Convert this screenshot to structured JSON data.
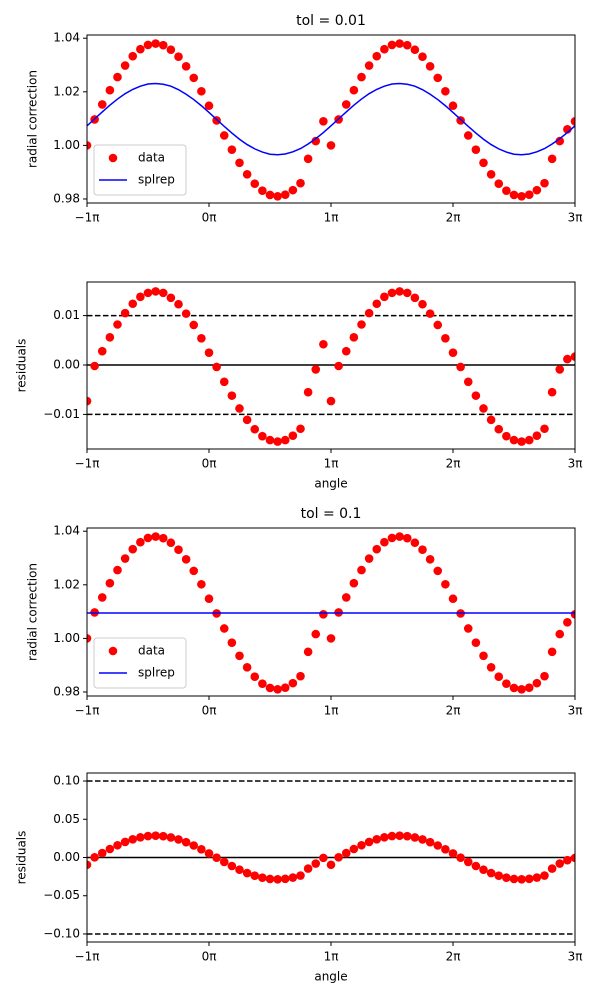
{
  "chart_data": [
    {
      "type": "line",
      "title": "tol = 0.01",
      "ylabel": "radial correction",
      "x": [
        -1,
        -0.9375,
        -0.875,
        -0.8125,
        -0.75,
        -0.6875,
        -0.625,
        -0.5625,
        -0.5,
        -0.4375,
        -0.375,
        -0.3125,
        -0.25,
        -0.1875,
        -0.125,
        -0.0625,
        0,
        0.0625,
        0.125,
        0.1875,
        0.25,
        0.3125,
        0.375,
        0.4375,
        0.5,
        0.5625,
        0.625,
        0.6875,
        0.75,
        0.8125,
        0.875,
        0.9375,
        1,
        1.0625,
        1.125,
        1.1875,
        1.25,
        1.3125,
        1.375,
        1.4375,
        1.5,
        1.5625,
        1.625,
        1.6875,
        1.75,
        1.8125,
        1.875,
        1.9375,
        2,
        2.0625,
        2.125,
        2.1875,
        2.25,
        2.3125,
        2.375,
        2.4375,
        2.5,
        2.5625,
        2.625,
        2.6875,
        2.75,
        2.8125,
        2.875,
        2.9375,
        3
      ],
      "series": [
        {
          "name": "data",
          "color": "red",
          "style": "marker",
          "values": [
            1.0,
            1.0097,
            1.0153,
            1.0206,
            1.0255,
            1.0298,
            1.0333,
            1.0359,
            1.0375,
            1.038,
            1.0374,
            1.0357,
            1.0331,
            1.0295,
            1.0252,
            1.0202,
            1.0148,
            1.0093,
            1.0037,
            0.9984,
            0.9935,
            0.9892,
            0.9857,
            0.9831,
            0.9815,
            0.981,
            0.9816,
            0.9833,
            0.9859,
            0.995,
            1.0016,
            1.009,
            1.0,
            1.0097,
            1.0153,
            1.0206,
            1.0255,
            1.0298,
            1.0333,
            1.0359,
            1.0375,
            1.038,
            1.0374,
            1.0357,
            1.0331,
            1.0295,
            1.0252,
            1.0202,
            1.0148,
            1.0093,
            1.0037,
            0.9984,
            0.9935,
            0.9892,
            0.9857,
            0.9831,
            0.9815,
            0.981,
            0.9816,
            0.9833,
            0.9859,
            0.995,
            1.0016,
            1.006,
            1.009
          ]
        },
        {
          "name": "splrep",
          "color": "blue",
          "style": "line",
          "values": [
            1.0073,
            1.0099,
            1.0125,
            1.015,
            1.0173,
            1.0193,
            1.0209,
            1.0221,
            1.0229,
            1.0231,
            1.0228,
            1.0221,
            1.0208,
            1.0191,
            1.0171,
            1.0148,
            1.0123,
            1.0097,
            1.0071,
            1.0046,
            1.0023,
            1.0003,
            0.9987,
            0.9975,
            0.9967,
            0.9965,
            0.9968,
            0.9976,
            0.9988,
            1.0005,
            1.0025,
            1.0048,
            1.0073,
            1.0099,
            1.0125,
            1.015,
            1.0173,
            1.0193,
            1.0209,
            1.0221,
            1.0229,
            1.0231,
            1.0228,
            1.0221,
            1.0208,
            1.0191,
            1.0171,
            1.0148,
            1.0123,
            1.0097,
            1.0071,
            1.0046,
            1.0023,
            1.0003,
            0.9987,
            0.9975,
            0.9967,
            0.9965,
            0.9968,
            0.9976,
            0.9988,
            1.0005,
            1.0025,
            1.0048,
            1.0073
          ]
        }
      ],
      "xlim": [
        -1,
        3
      ],
      "xticks": [
        {
          "value": -1,
          "label": "−1π"
        },
        {
          "value": 0,
          "label": "0π"
        },
        {
          "value": 1,
          "label": "1π"
        },
        {
          "value": 2,
          "label": "2π"
        },
        {
          "value": 3,
          "label": "3π"
        }
      ],
      "ylim": [
        0.9785,
        1.0412
      ],
      "yticks": [
        0.98,
        {
          "value": 1,
          "label": "1.00"
        },
        1.02,
        1.04
      ],
      "legend": "lower left"
    },
    {
      "type": "scatter",
      "ylabel": "residuals",
      "xlabel": "angle",
      "x": [
        -1,
        -0.9375,
        -0.875,
        -0.8125,
        -0.75,
        -0.6875,
        -0.625,
        -0.5625,
        -0.5,
        -0.4375,
        -0.375,
        -0.3125,
        -0.25,
        -0.1875,
        -0.125,
        -0.0625,
        0,
        0.0625,
        0.125,
        0.1875,
        0.25,
        0.3125,
        0.375,
        0.4375,
        0.5,
        0.5625,
        0.625,
        0.6875,
        0.75,
        0.8125,
        0.875,
        0.9375,
        1,
        1.0625,
        1.125,
        1.1875,
        1.25,
        1.3125,
        1.375,
        1.4375,
        1.5,
        1.5625,
        1.625,
        1.6875,
        1.75,
        1.8125,
        1.875,
        1.9375,
        2,
        2.0625,
        2.125,
        2.1875,
        2.25,
        2.3125,
        2.375,
        2.4375,
        2.5,
        2.5625,
        2.625,
        2.6875,
        2.75,
        2.8125,
        2.875,
        2.9375,
        3
      ],
      "series": [
        {
          "color": "red",
          "style": "marker",
          "values": [
            -0.0073,
            -0.0002,
            0.0028,
            0.0056,
            0.0082,
            0.0105,
            0.0124,
            0.0138,
            0.0146,
            0.0149,
            0.0146,
            0.0136,
            0.0123,
            0.0104,
            0.0081,
            0.0054,
            0.0025,
            -0.0004,
            -0.0034,
            -0.0062,
            -0.0088,
            -0.0111,
            -0.013,
            -0.0144,
            -0.0152,
            -0.0155,
            -0.0152,
            -0.0143,
            -0.0129,
            -0.0055,
            -0.0009,
            0.0042,
            -0.0073,
            -0.0002,
            0.0028,
            0.0056,
            0.0082,
            0.0105,
            0.0124,
            0.0138,
            0.0146,
            0.0149,
            0.0146,
            0.0136,
            0.0123,
            0.0104,
            0.0081,
            0.0054,
            0.0025,
            -0.0004,
            -0.0034,
            -0.0062,
            -0.0088,
            -0.0111,
            -0.013,
            -0.0144,
            -0.0152,
            -0.0155,
            -0.0152,
            -0.0143,
            -0.0129,
            -0.0055,
            -0.0009,
            0.0012,
            0.0017
          ]
        }
      ],
      "hlines": [
        {
          "value": 0.01,
          "style": "dashed"
        },
        {
          "value": 0,
          "style": "solid"
        },
        {
          "value": -0.01,
          "style": "dashed"
        }
      ],
      "xlim": [
        -1,
        3
      ],
      "xticks": [
        {
          "value": -1,
          "label": "−1π"
        },
        {
          "value": 0,
          "label": "0π"
        },
        {
          "value": 1,
          "label": "1π"
        },
        {
          "value": 2,
          "label": "2π"
        },
        {
          "value": 3,
          "label": "3π"
        }
      ],
      "ylim": [
        -0.017,
        0.0168
      ],
      "yticks": [
        0.01,
        {
          "value": 0,
          "label": "0.00"
        },
        {
          "value": -0.01,
          "label": "−0.01"
        }
      ]
    },
    {
      "type": "line",
      "title": "tol = 0.1",
      "ylabel": "radial correction",
      "x": [
        -1,
        -0.9375,
        -0.875,
        -0.8125,
        -0.75,
        -0.6875,
        -0.625,
        -0.5625,
        -0.5,
        -0.4375,
        -0.375,
        -0.3125,
        -0.25,
        -0.1875,
        -0.125,
        -0.0625,
        0,
        0.0625,
        0.125,
        0.1875,
        0.25,
        0.3125,
        0.375,
        0.4375,
        0.5,
        0.5625,
        0.625,
        0.6875,
        0.75,
        0.8125,
        0.875,
        0.9375,
        1,
        1.0625,
        1.125,
        1.1875,
        1.25,
        1.3125,
        1.375,
        1.4375,
        1.5,
        1.5625,
        1.625,
        1.6875,
        1.75,
        1.8125,
        1.875,
        1.9375,
        2,
        2.0625,
        2.125,
        2.1875,
        2.25,
        2.3125,
        2.375,
        2.4375,
        2.5,
        2.5625,
        2.625,
        2.6875,
        2.75,
        2.8125,
        2.875,
        2.9375,
        3
      ],
      "series": [
        {
          "name": "data",
          "color": "red",
          "style": "marker",
          "values": [
            1.0,
            1.0097,
            1.0153,
            1.0206,
            1.0255,
            1.0298,
            1.0333,
            1.0359,
            1.0375,
            1.038,
            1.0374,
            1.0357,
            1.0331,
            1.0295,
            1.0252,
            1.0202,
            1.0148,
            1.0093,
            1.0037,
            0.9984,
            0.9935,
            0.9892,
            0.9857,
            0.9831,
            0.9815,
            0.981,
            0.9816,
            0.9833,
            0.9859,
            0.995,
            1.0016,
            1.009,
            1.0,
            1.0097,
            1.0153,
            1.0206,
            1.0255,
            1.0298,
            1.0333,
            1.0359,
            1.0375,
            1.038,
            1.0374,
            1.0357,
            1.0331,
            1.0295,
            1.0252,
            1.0202,
            1.0148,
            1.0093,
            1.0037,
            0.9984,
            0.9935,
            0.9892,
            0.9857,
            0.9831,
            0.9815,
            0.981,
            0.9816,
            0.9833,
            0.9859,
            0.995,
            1.0016,
            1.006,
            1.009
          ]
        },
        {
          "name": "splrep",
          "color": "blue",
          "style": "line",
          "values": [
            1.0095,
            1.0095,
            1.0095,
            1.0095,
            1.0095,
            1.0095,
            1.0095,
            1.0095,
            1.0095,
            1.0095,
            1.0095,
            1.0095,
            1.0095,
            1.0095,
            1.0095,
            1.0095,
            1.0095,
            1.0095,
            1.0095,
            1.0095,
            1.0095,
            1.0095,
            1.0095,
            1.0095,
            1.0095,
            1.0095,
            1.0095,
            1.0095,
            1.0095,
            1.0095,
            1.0095,
            1.0095,
            1.0095,
            1.0095,
            1.0095,
            1.0095,
            1.0095,
            1.0095,
            1.0095,
            1.0095,
            1.0095,
            1.0095,
            1.0095,
            1.0095,
            1.0095,
            1.0095,
            1.0095,
            1.0095,
            1.0095,
            1.0095,
            1.0095,
            1.0095,
            1.0095,
            1.0095,
            1.0095,
            1.0095,
            1.0095,
            1.0095,
            1.0095,
            1.0095,
            1.0095,
            1.0095,
            1.0095,
            1.0095,
            1.0095
          ]
        }
      ],
      "xlim": [
        -1,
        3
      ],
      "xticks": [
        {
          "value": -1,
          "label": "−1π"
        },
        {
          "value": 0,
          "label": "0π"
        },
        {
          "value": 1,
          "label": "1π"
        },
        {
          "value": 2,
          "label": "2π"
        },
        {
          "value": 3,
          "label": "3π"
        }
      ],
      "ylim": [
        0.9785,
        1.0412
      ],
      "yticks": [
        0.98,
        {
          "value": 1,
          "label": "1.00"
        },
        1.02,
        1.04
      ],
      "legend": "lower left"
    },
    {
      "type": "scatter",
      "ylabel": "residuals",
      "xlabel": "angle",
      "x": [
        -1,
        -0.9375,
        -0.875,
        -0.8125,
        -0.75,
        -0.6875,
        -0.625,
        -0.5625,
        -0.5,
        -0.4375,
        -0.375,
        -0.3125,
        -0.25,
        -0.1875,
        -0.125,
        -0.0625,
        0,
        0.0625,
        0.125,
        0.1875,
        0.25,
        0.3125,
        0.375,
        0.4375,
        0.5,
        0.5625,
        0.625,
        0.6875,
        0.75,
        0.8125,
        0.875,
        0.9375,
        1,
        1.0625,
        1.125,
        1.1875,
        1.25,
        1.3125,
        1.375,
        1.4375,
        1.5,
        1.5625,
        1.625,
        1.6875,
        1.75,
        1.8125,
        1.875,
        1.9375,
        2,
        2.0625,
        2.125,
        2.1875,
        2.25,
        2.3125,
        2.375,
        2.4375,
        2.5,
        2.5625,
        2.625,
        2.6875,
        2.75,
        2.8125,
        2.875,
        2.9375,
        3
      ],
      "series": [
        {
          "color": "red",
          "style": "marker",
          "values": [
            -0.0095,
            0.0002,
            0.0058,
            0.0111,
            0.016,
            0.0203,
            0.0238,
            0.0264,
            0.028,
            0.0285,
            0.0279,
            0.0262,
            0.0236,
            0.02,
            0.0157,
            0.0107,
            0.0053,
            -0.0002,
            -0.0058,
            -0.0111,
            -0.016,
            -0.0203,
            -0.0238,
            -0.0264,
            -0.028,
            -0.0285,
            -0.0279,
            -0.0262,
            -0.0236,
            -0.0145,
            -0.0079,
            -0.0005,
            -0.0095,
            0.0002,
            0.0058,
            0.0111,
            0.016,
            0.0203,
            0.0238,
            0.0264,
            0.028,
            0.0285,
            0.0279,
            0.0262,
            0.0236,
            0.02,
            0.0157,
            0.0107,
            0.0053,
            -0.0002,
            -0.0058,
            -0.0111,
            -0.016,
            -0.0203,
            -0.0238,
            -0.0264,
            -0.028,
            -0.0285,
            -0.0279,
            -0.0262,
            -0.0236,
            -0.0145,
            -0.0079,
            -0.0035,
            -0.0005
          ]
        }
      ],
      "hlines": [
        {
          "value": 0.1,
          "style": "dashed"
        },
        {
          "value": 0,
          "style": "solid"
        },
        {
          "value": -0.1,
          "style": "dashed"
        }
      ],
      "xlim": [
        -1,
        3
      ],
      "xticks": [
        {
          "value": -1,
          "label": "−1π"
        },
        {
          "value": 0,
          "label": "0π"
        },
        {
          "value": 1,
          "label": "1π"
        },
        {
          "value": 2,
          "label": "2π"
        },
        {
          "value": 3,
          "label": "3π"
        }
      ],
      "ylim": [
        -0.1105,
        0.1105
      ],
      "yticks": [
        {
          "value": 0.1,
          "label": "0.10"
        },
        0.05,
        {
          "value": 0,
          "label": "0.00"
        },
        {
          "value": -0.05,
          "label": "−0.05"
        },
        {
          "value": -0.1,
          "label": "−0.10"
        }
      ]
    }
  ]
}
